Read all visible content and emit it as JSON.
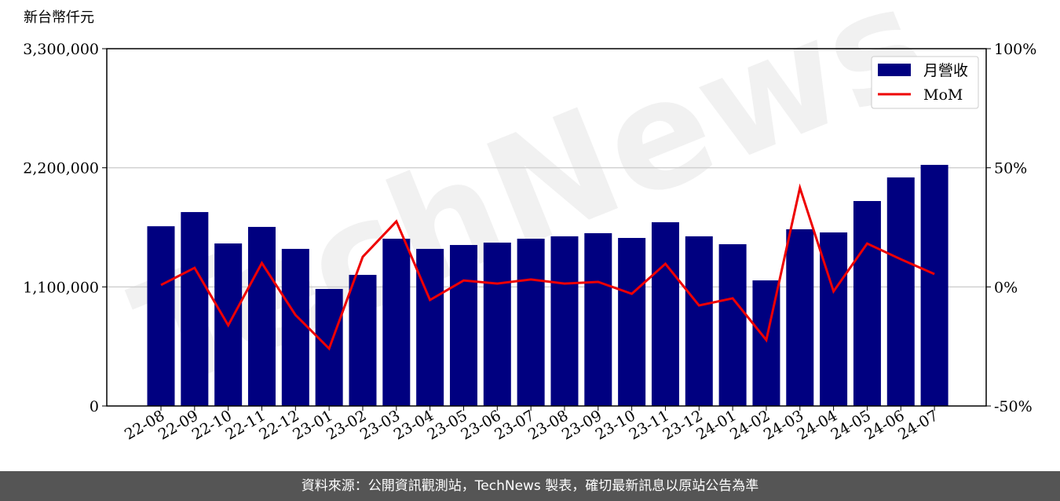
{
  "chart_data": {
    "type": "bar",
    "y_label": "新台幣仟元",
    "watermark": "TechNews",
    "categories": [
      "22-08",
      "22-09",
      "22-10",
      "22-11",
      "22-12",
      "23-01",
      "23-02",
      "23-03",
      "23-04",
      "23-05",
      "23-06",
      "23-07",
      "23-08",
      "23-09",
      "23-10",
      "23-11",
      "23-12",
      "24-01",
      "24-02",
      "24-03",
      "24-04",
      "24-05",
      "24-06",
      "24-07"
    ],
    "series": [
      {
        "name": "月營收",
        "type": "bar",
        "color": "#000080",
        "axis": "y",
        "values": [
          1660000,
          1791000,
          1501000,
          1654000,
          1451000,
          1081000,
          1211000,
          1545000,
          1451000,
          1487000,
          1509000,
          1545000,
          1567000,
          1596000,
          1552000,
          1697000,
          1567000,
          1494000,
          1160000,
          1632000,
          1603000,
          1893000,
          2111000,
          2227000
        ]
      },
      {
        "name": "MoM",
        "type": "line",
        "color": "#ee0000",
        "axis": "y2",
        "values": [
          0.8,
          8.0,
          -16.1,
          10.0,
          -11.8,
          -25.9,
          12.6,
          27.5,
          -5.5,
          2.7,
          1.4,
          3.1,
          1.4,
          2.1,
          -2.9,
          9.7,
          -7.8,
          -4.8,
          -22.3,
          41.6,
          -1.9,
          18.2,
          11.6,
          5.4
        ]
      }
    ],
    "ylim": [
      0,
      3300000
    ],
    "yticks": [
      0,
      {
        "value": 1100000,
        "label": "1,100,000"
      },
      {
        "value": 2200000,
        "label": "2,200,000"
      },
      {
        "value": 3300000,
        "label": "3,300,000"
      }
    ],
    "y2lim": [
      -50,
      100
    ],
    "y2ticks": [
      {
        "value": -50,
        "label": "-50%"
      },
      {
        "value": 0,
        "label": "0%"
      },
      {
        "value": 50,
        "label": "50%"
      },
      {
        "value": 100,
        "label": "100%"
      }
    ],
    "grid": true,
    "legend": "upper right"
  },
  "footer": "資料來源：公開資訊觀測站，TechNews 製表，確切最新訊息以原站公告為準"
}
